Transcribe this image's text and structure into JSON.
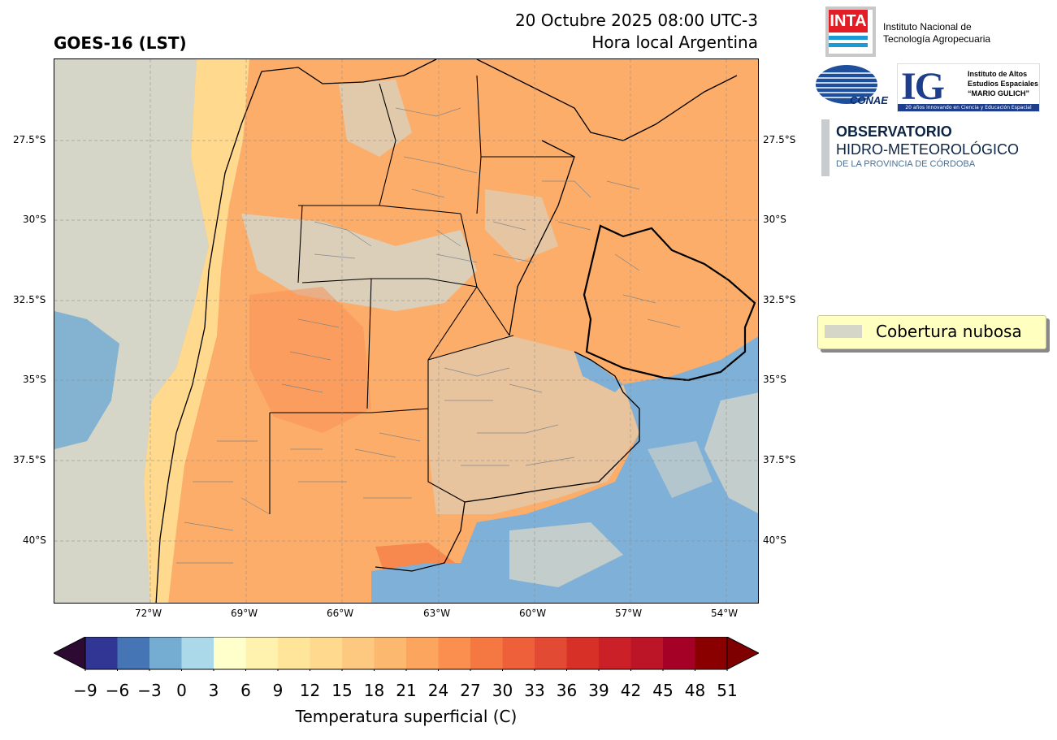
{
  "header": {
    "product": "GOES-16 (LST)",
    "datetime": "20 Octubre 2025 08:00 UTC-3",
    "local_time": "Hora local Argentina"
  },
  "map": {
    "lat_ticks": [
      "27.5°S",
      "30°S",
      "32.5°S",
      "35°S",
      "37.5°S",
      "40°S"
    ],
    "lon_ticks": [
      "72°W",
      "69°W",
      "66°W",
      "63°W",
      "60°W",
      "57°W",
      "54°W"
    ],
    "grid": true,
    "colors": {
      "cloud": "#d5d5c8",
      "warm": "#fcad6a",
      "warm2": "#f88d52",
      "mild": "#fed98e",
      "cool": "#74add1",
      "sea": "#7fb0d8"
    }
  },
  "legend": {
    "label": "Cobertura nubosa",
    "color": "#d5d5c8"
  },
  "colorbar": {
    "ticks": [
      "−9",
      "−6",
      "−3",
      "0",
      "3",
      "6",
      "9",
      "12",
      "15",
      "18",
      "21",
      "24",
      "27",
      "30",
      "33",
      "36",
      "39",
      "42",
      "45",
      "48",
      "51"
    ],
    "colors": [
      "#313695",
      "#4575b4",
      "#74add1",
      "#abd9e9",
      "#ffffcc",
      "#fff2ae",
      "#ffe599",
      "#fed98e",
      "#fdc980",
      "#fdb870",
      "#fca55e",
      "#fb8f4f",
      "#f57843",
      "#ee6039",
      "#e34a33",
      "#d73027",
      "#cb2027",
      "#bb1527",
      "#a50026",
      "#8a0000"
    ],
    "under_color": "#2d0a32",
    "over_color": "#7f0000",
    "label": "Temperatura superficial (C)"
  },
  "logos": {
    "inta_mark": "INTA",
    "inta_line1": "Instituto Nacional de",
    "inta_line2": "Tecnología Agropecuaria",
    "conae": "CONAE",
    "ig_mark": "IG",
    "ig_line1": "Instituto de Altos",
    "ig_line2": "Estudios Espaciales",
    "ig_line3": "“MARIO GULICH”",
    "ig_footer": "20 años innovando en Ciencia y Educación Espacial",
    "obs_line1": "OBSERVATORIO",
    "obs_line2": "HIDRO-METEOROLÓGICO",
    "obs_line3": "DE LA PROVINCIA DE CÓRDOBA"
  }
}
